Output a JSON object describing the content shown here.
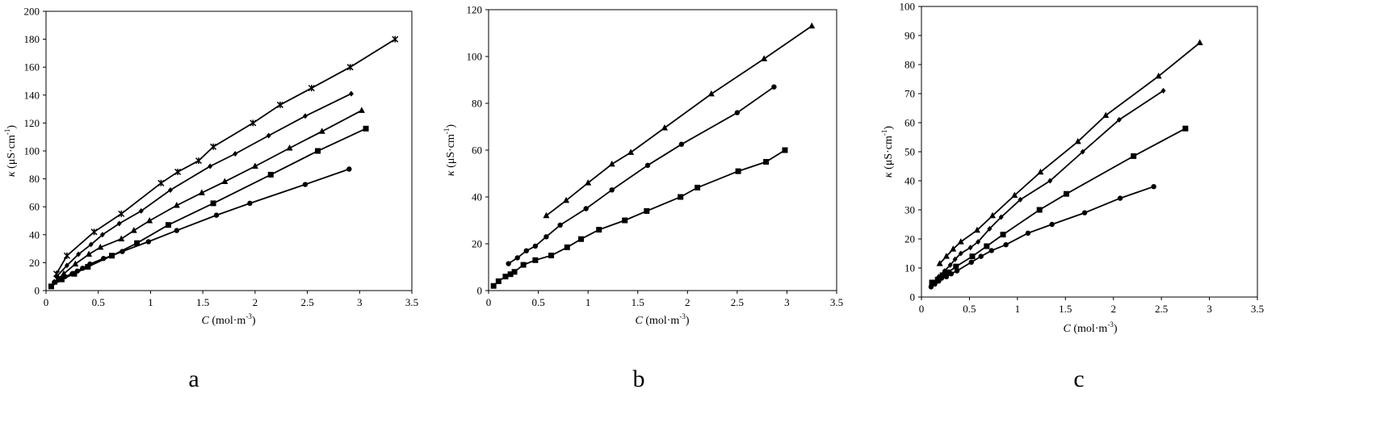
{
  "chart_data": [
    {
      "type": "line",
      "panel_label": "a",
      "xlabel_italic": "C",
      "xlabel_rest": " (mol·m",
      "xlabel_sup": "-3",
      "xlabel_end": ")",
      "ylabel_italic": "κ",
      "ylabel_rest": " (μS·cm",
      "ylabel_sup": "-1",
      "ylabel_end": ")",
      "xlim": [
        0,
        3.5
      ],
      "ylim": [
        0,
        200
      ],
      "x_ticks": [
        "0",
        "0.5",
        "1",
        "1.5",
        "2",
        "2.5",
        "3",
        "3.5"
      ],
      "y_ticks": [
        "0",
        "20",
        "40",
        "60",
        "80",
        "100",
        "120",
        "140",
        "160",
        "180",
        "200"
      ],
      "x_tick_values": [
        0,
        0.5,
        1,
        1.5,
        2,
        2.5,
        3,
        3.5
      ],
      "y_tick_values": [
        0,
        20,
        40,
        60,
        80,
        100,
        120,
        140,
        160,
        180,
        200
      ],
      "grid": false,
      "series": [
        {
          "marker": "circle",
          "x": [
            0.08,
            0.12,
            0.18,
            0.25,
            0.3,
            0.35,
            0.42,
            0.55,
            0.63,
            0.73,
            0.98,
            1.25,
            1.63,
            1.95,
            2.48,
            2.9
          ],
          "y": [
            6,
            8,
            10,
            12,
            14,
            16,
            19,
            23,
            25,
            28,
            35,
            43,
            54,
            62.5,
            76,
            87
          ]
        },
        {
          "marker": "square",
          "x": [
            0.05,
            0.15,
            0.27,
            0.4,
            0.63,
            0.87,
            1.17,
            1.6,
            2.15,
            2.6,
            3.06
          ],
          "y": [
            3,
            8,
            12,
            17,
            25,
            34,
            47,
            62.5,
            83,
            100,
            116
          ]
        },
        {
          "marker": "triangle",
          "x": [
            0.08,
            0.17,
            0.28,
            0.41,
            0.52,
            0.72,
            0.84,
            0.99,
            1.25,
            1.49,
            1.71,
            2.0,
            2.33,
            2.64,
            3.02
          ],
          "y": [
            6,
            12,
            19,
            26,
            31,
            37,
            43,
            50,
            61,
            70,
            78,
            89,
            102,
            114,
            129
          ]
        },
        {
          "marker": "diamond",
          "x": [
            0.1,
            0.2,
            0.31,
            0.43,
            0.54,
            0.7,
            0.91,
            1.19,
            1.57,
            1.81,
            2.13,
            2.48,
            2.92
          ],
          "y": [
            10,
            18,
            26,
            33,
            40,
            48,
            57,
            72,
            89,
            98,
            111,
            125,
            141
          ]
        },
        {
          "marker": "star",
          "x": [
            0.1,
            0.2,
            0.46,
            0.72,
            1.1,
            1.26,
            1.46,
            1.6,
            1.98,
            2.24,
            2.54,
            2.91,
            3.34
          ],
          "y": [
            12,
            25,
            42,
            55,
            77,
            85,
            93,
            103,
            120,
            133,
            145,
            160,
            180
          ]
        }
      ]
    },
    {
      "type": "line",
      "panel_label": "b",
      "xlabel_italic": "C",
      "xlabel_rest": " (mol·m",
      "xlabel_sup": "-3",
      "xlabel_end": ")",
      "ylabel_italic": "κ",
      "ylabel_rest": " (μS·cm",
      "ylabel_sup": "-1",
      "ylabel_end": ")",
      "xlim": [
        0,
        3.5
      ],
      "ylim": [
        0,
        120
      ],
      "x_ticks": [
        "0",
        "0.5",
        "1",
        "1.5",
        "2",
        "2.5",
        "3",
        "3.5"
      ],
      "y_ticks": [
        "0",
        "20",
        "40",
        "60",
        "80",
        "100",
        "120"
      ],
      "x_tick_values": [
        0,
        0.5,
        1,
        1.5,
        2,
        2.5,
        3,
        3.5
      ],
      "y_tick_values": [
        0,
        20,
        40,
        60,
        80,
        100,
        120
      ],
      "grid": false,
      "series": [
        {
          "marker": "square",
          "x": [
            0.05,
            0.1,
            0.17,
            0.22,
            0.26,
            0.35,
            0.47,
            0.63,
            0.79,
            0.93,
            1.11,
            1.37,
            1.59,
            1.93,
            2.1,
            2.51,
            2.79,
            2.98
          ],
          "y": [
            2,
            4,
            6,
            7,
            8,
            11,
            13,
            15,
            18.5,
            22,
            26,
            30,
            34,
            40,
            44,
            51,
            55,
            60
          ]
        },
        {
          "marker": "circle",
          "x": [
            0.2,
            0.29,
            0.38,
            0.47,
            0.58,
            0.72,
            0.98,
            1.24,
            1.6,
            1.94,
            2.5,
            2.87
          ],
          "y": [
            11.5,
            14,
            17,
            19,
            23,
            28,
            35,
            43,
            53.5,
            62.5,
            76,
            87
          ]
        },
        {
          "marker": "triangle",
          "x": [
            0.58,
            0.78,
            1.0,
            1.24,
            1.43,
            1.77,
            2.24,
            2.77,
            3.25
          ],
          "y": [
            32,
            38.5,
            46,
            54,
            59,
            69.5,
            84,
            99,
            113
          ]
        }
      ]
    },
    {
      "type": "line",
      "panel_label": "c",
      "xlabel_italic": "C",
      "xlabel_rest": " (mol·m",
      "xlabel_sup": "-3",
      "xlabel_end": ")",
      "ylabel_italic": "κ",
      "ylabel_rest": " (μS·cm",
      "ylabel_sup": "-1",
      "ylabel_end": ")",
      "xlim": [
        0,
        3.5
      ],
      "ylim": [
        0,
        100
      ],
      "x_ticks": [
        "0",
        "0.5",
        "1",
        "1.5",
        "2",
        "2.5",
        "3",
        "3.5"
      ],
      "y_ticks": [
        "0",
        "10",
        "20",
        "30",
        "40",
        "50",
        "60",
        "70",
        "80",
        "90",
        "100"
      ],
      "x_tick_values": [
        0,
        0.5,
        1,
        1.5,
        2,
        2.5,
        3,
        3.5
      ],
      "y_tick_values": [
        0,
        10,
        20,
        30,
        40,
        50,
        60,
        70,
        80,
        90,
        100
      ],
      "grid": false,
      "series": [
        {
          "marker": "circle",
          "x": [
            0.1,
            0.14,
            0.18,
            0.21,
            0.26,
            0.31,
            0.37,
            0.52,
            0.62,
            0.73,
            0.88,
            1.11,
            1.36,
            1.7,
            2.07,
            2.42
          ],
          "y": [
            3.5,
            4.5,
            5.5,
            6.5,
            7,
            8,
            9,
            12,
            14,
            16,
            18,
            22,
            25,
            29,
            34,
            38
          ]
        },
        {
          "marker": "square",
          "x": [
            0.11,
            0.17,
            0.22,
            0.28,
            0.36,
            0.53,
            0.68,
            0.85,
            1.23,
            1.51,
            2.21,
            2.75
          ],
          "y": [
            5,
            6,
            7.5,
            8.5,
            10.5,
            14,
            17.5,
            21.5,
            30,
            35.5,
            48.5,
            58
          ]
        },
        {
          "marker": "diamond",
          "x": [
            0.13,
            0.18,
            0.24,
            0.3,
            0.35,
            0.41,
            0.51,
            0.59,
            0.71,
            0.83,
            1.03,
            1.34,
            1.68,
            2.06,
            2.52
          ],
          "y": [
            5,
            7,
            9,
            11,
            13,
            15,
            17,
            19,
            23.5,
            27.5,
            33.5,
            40,
            50,
            61,
            71
          ]
        },
        {
          "marker": "triangle",
          "x": [
            0.19,
            0.26,
            0.33,
            0.41,
            0.58,
            0.74,
            0.97,
            1.24,
            1.63,
            1.92,
            2.47,
            2.9
          ],
          "y": [
            11.5,
            14,
            16.5,
            19,
            23,
            28,
            35,
            43,
            53.5,
            62.5,
            76,
            87.5
          ]
        }
      ]
    }
  ]
}
